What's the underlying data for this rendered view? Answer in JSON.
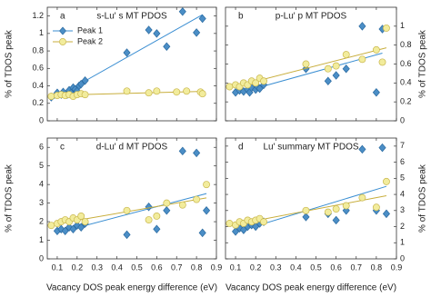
{
  "chart_data": [
    {
      "type": "scatter",
      "panel": "a",
      "title": "s-Lu' s MT PDOS",
      "y_label": "% of TDOS peak",
      "legend": "upper left",
      "xlim": [
        0.05,
        0.9
      ],
      "xticks": [
        0.1,
        0.2,
        0.3,
        0.4,
        0.5,
        0.6,
        0.7,
        0.8,
        0.9
      ],
      "ylim": [
        0,
        1.3
      ],
      "yticks": [
        0,
        0.2,
        0.4,
        0.6,
        0.8,
        1,
        1.2
      ],
      "series": [
        {
          "name": "Peak 1",
          "marker": "diamond",
          "color": "#4b8ec6",
          "x": [
            0.07,
            0.1,
            0.12,
            0.13,
            0.15,
            0.16,
            0.17,
            0.18,
            0.19,
            0.2,
            0.21,
            0.22,
            0.24,
            0.45,
            0.56,
            0.6,
            0.65,
            0.73,
            0.8,
            0.83
          ],
          "values": [
            0.27,
            0.32,
            0.3,
            0.33,
            0.3,
            0.35,
            0.32,
            0.38,
            0.36,
            0.34,
            0.4,
            0.42,
            0.46,
            0.78,
            1.04,
            1.0,
            0.85,
            1.25,
            1.01,
            1.17
          ]
        },
        {
          "name": "Peak 2",
          "marker": "circle",
          "color": "#f2ec9c",
          "x": [
            0.07,
            0.1,
            0.12,
            0.14,
            0.16,
            0.18,
            0.2,
            0.22,
            0.24,
            0.45,
            0.56,
            0.6,
            0.7,
            0.75,
            0.82,
            0.83
          ],
          "values": [
            0.28,
            0.29,
            0.3,
            0.29,
            0.3,
            0.28,
            0.3,
            0.31,
            0.3,
            0.34,
            0.32,
            0.34,
            0.33,
            0.34,
            0.33,
            0.31
          ]
        }
      ]
    },
    {
      "type": "scatter",
      "panel": "b",
      "title": "p-Lu' p MT PDOS",
      "y_label": "% of TDOS peak",
      "xlim": [
        0.05,
        0.9
      ],
      "xticks": [
        0.1,
        0.2,
        0.3,
        0.4,
        0.5,
        0.6,
        0.7,
        0.8,
        0.9
      ],
      "ylim": [
        0,
        1.2
      ],
      "yticks": [
        0,
        0.2,
        0.4,
        0.6,
        0.8,
        1
      ],
      "series": [
        {
          "name": "Peak 1",
          "marker": "diamond",
          "color": "#4b8ec6",
          "x": [
            0.1,
            0.12,
            0.14,
            0.16,
            0.17,
            0.18,
            0.2,
            0.21,
            0.22,
            0.24,
            0.45,
            0.56,
            0.6,
            0.65,
            0.73,
            0.8,
            0.83
          ],
          "values": [
            0.3,
            0.32,
            0.31,
            0.33,
            0.3,
            0.35,
            0.33,
            0.36,
            0.34,
            0.38,
            0.55,
            0.42,
            0.48,
            0.55,
            1.0,
            0.3,
            0.97
          ]
        },
        {
          "name": "Peak 2",
          "marker": "circle",
          "color": "#f2ec9c",
          "x": [
            0.07,
            0.1,
            0.12,
            0.14,
            0.16,
            0.18,
            0.2,
            0.22,
            0.24,
            0.45,
            0.56,
            0.6,
            0.65,
            0.73,
            0.8,
            0.83,
            0.85
          ],
          "values": [
            0.36,
            0.38,
            0.36,
            0.4,
            0.38,
            0.42,
            0.4,
            0.45,
            0.42,
            0.6,
            0.55,
            0.58,
            0.7,
            0.65,
            0.75,
            0.62,
            0.98
          ]
        }
      ]
    },
    {
      "type": "scatter",
      "panel": "c",
      "title": "d-Lu' d MT PDOS",
      "y_label": "% of TDOS peak",
      "x_label": "Vacancy DOS peak energy difference (eV)",
      "xlim": [
        0.05,
        0.9
      ],
      "xticks": [
        0.1,
        0.2,
        0.3,
        0.4,
        0.5,
        0.6,
        0.7,
        0.8,
        0.9
      ],
      "ylim": [
        0,
        6.5
      ],
      "yticks": [
        0,
        1,
        2,
        3,
        4,
        5,
        6
      ],
      "series": [
        {
          "name": "Peak 1",
          "marker": "diamond",
          "color": "#4b8ec6",
          "x": [
            0.1,
            0.12,
            0.14,
            0.16,
            0.18,
            0.2,
            0.22,
            0.24,
            0.45,
            0.56,
            0.6,
            0.65,
            0.73,
            0.8,
            0.83,
            0.85
          ],
          "values": [
            1.5,
            1.6,
            1.5,
            1.7,
            1.6,
            1.8,
            1.7,
            1.9,
            1.3,
            2.8,
            1.6,
            2.6,
            5.8,
            5.7,
            1.4,
            2.6
          ]
        },
        {
          "name": "Peak 2",
          "marker": "circle",
          "color": "#f2ec9c",
          "x": [
            0.07,
            0.1,
            0.12,
            0.14,
            0.16,
            0.18,
            0.2,
            0.22,
            0.24,
            0.45,
            0.56,
            0.6,
            0.65,
            0.73,
            0.8,
            0.85
          ],
          "values": [
            1.8,
            1.9,
            2.0,
            2.1,
            2.0,
            2.2,
            2.1,
            2.3,
            2.0,
            2.6,
            2.1,
            2.3,
            3.0,
            2.9,
            3.2,
            4.0
          ]
        }
      ]
    },
    {
      "type": "scatter",
      "panel": "d",
      "title": "Lu' summary MT PDOS",
      "y_label": "% of TDOS peak",
      "x_label": "Vacancy DOS peak energy difference (eV)",
      "xlim": [
        0.05,
        0.9
      ],
      "xticks": [
        0.1,
        0.2,
        0.3,
        0.4,
        0.5,
        0.6,
        0.7,
        0.8,
        0.9
      ],
      "ylim": [
        0,
        7.5
      ],
      "yticks": [
        0,
        1,
        2,
        3,
        4,
        5,
        6,
        7
      ],
      "series": [
        {
          "name": "Peak 1",
          "marker": "diamond",
          "color": "#4b8ec6",
          "x": [
            0.1,
            0.12,
            0.14,
            0.16,
            0.18,
            0.2,
            0.22,
            0.24,
            0.45,
            0.56,
            0.6,
            0.65,
            0.73,
            0.8,
            0.83,
            0.85
          ],
          "values": [
            1.7,
            1.9,
            1.8,
            2.0,
            2.1,
            2.0,
            2.2,
            2.3,
            2.6,
            2.8,
            2.4,
            3.0,
            6.8,
            3.0,
            6.9,
            2.8
          ]
        },
        {
          "name": "Peak 2",
          "marker": "circle",
          "color": "#f2ec9c",
          "x": [
            0.07,
            0.1,
            0.12,
            0.14,
            0.16,
            0.18,
            0.2,
            0.22,
            0.24,
            0.45,
            0.56,
            0.6,
            0.65,
            0.73,
            0.8,
            0.85
          ],
          "values": [
            2.2,
            2.1,
            2.3,
            2.2,
            2.4,
            2.3,
            2.4,
            2.5,
            2.3,
            3.0,
            2.9,
            3.1,
            3.3,
            3.8,
            3.2,
            4.8
          ]
        }
      ]
    }
  ]
}
